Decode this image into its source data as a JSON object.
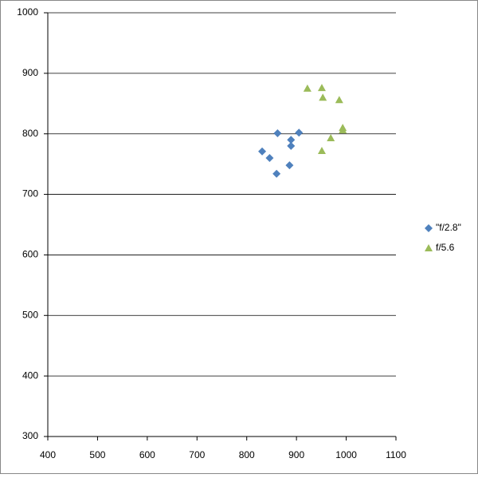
{
  "chart_data": {
    "type": "scatter",
    "series": [
      {
        "name": "\"f/2.8\"",
        "color": "#4f81bd",
        "marker": "diamond",
        "x": [
          831,
          846,
          860,
          862,
          886,
          889,
          889,
          905
        ],
        "values": [
          771,
          760,
          734,
          801,
          748,
          790,
          780,
          802
        ]
      },
      {
        "name": "f/5.6",
        "color": "#9bbb59",
        "marker": "triangle",
        "x": [
          922,
          951,
          953,
          986,
          993,
          993,
          951,
          969
        ],
        "values": [
          875,
          876,
          860,
          856,
          810,
          806,
          772,
          793
        ]
      }
    ],
    "xlim": [
      400,
      1100
    ],
    "xticks": [
      400,
      500,
      600,
      700,
      800,
      900,
      1000,
      1100
    ],
    "ylim": [
      300,
      1000
    ],
    "yticks": [
      300,
      400,
      500,
      600,
      700,
      800,
      900,
      1000
    ],
    "grid": true,
    "legend": "right"
  }
}
